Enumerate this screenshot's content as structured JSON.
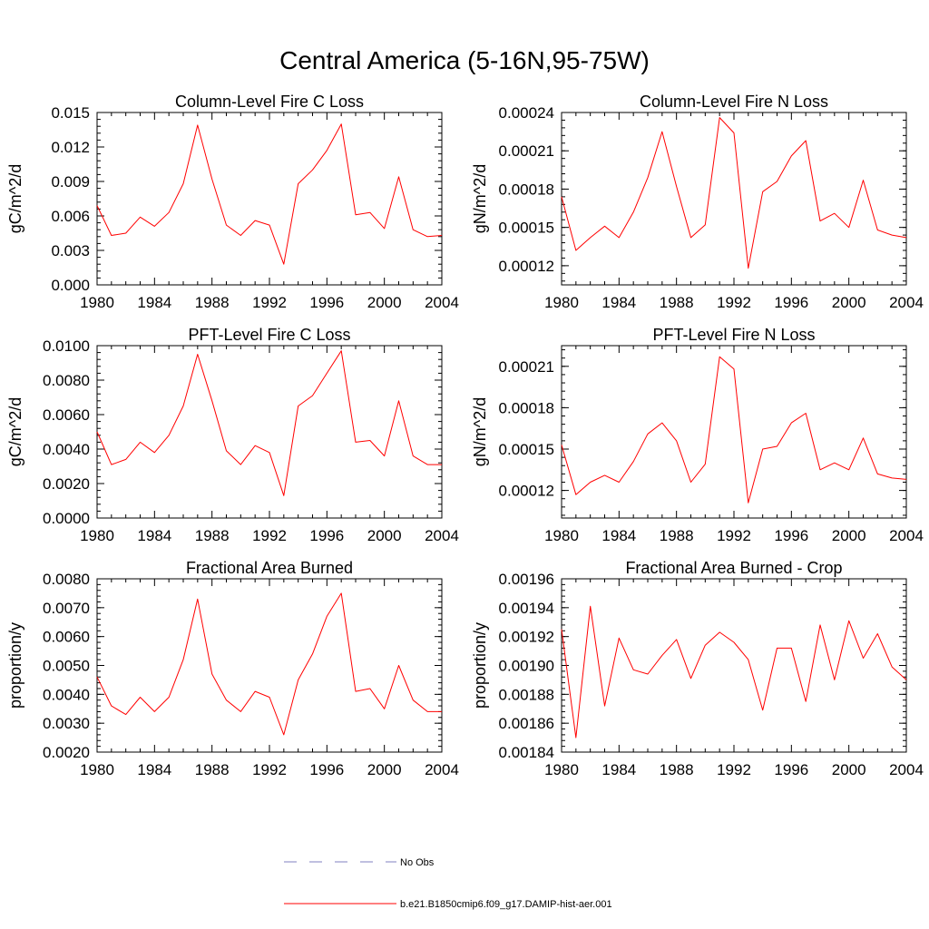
{
  "figure": {
    "title": "Central America (5-16N,95-75W)",
    "legend": {
      "placement": "bottom-center",
      "entries": [
        {
          "label": "No Obs",
          "color": "#8080c0",
          "style": "dashed"
        },
        {
          "label": "b.e21.B1850cmip6.f09_g17.DAMIP-hist-aer.001",
          "color": "#ff0000",
          "style": "solid"
        }
      ]
    }
  },
  "chart_data": [
    {
      "type": "line",
      "title": "Column-Level Fire C Loss",
      "ylabel": "gC/m^2/d",
      "xlim": [
        1980,
        2004
      ],
      "ylim": [
        0.0,
        0.015
      ],
      "xticks": [
        "1980",
        "1984",
        "1988",
        "1992",
        "1996",
        "2000",
        "2004"
      ],
      "yticks": [
        "0.000",
        "0.003",
        "0.006",
        "0.009",
        "0.012",
        "0.015"
      ],
      "series": [
        {
          "color": "#ff0000",
          "x": [
            1980,
            1981,
            1982,
            1983,
            1984,
            1985,
            1986,
            1987,
            1988,
            1989,
            1990,
            1991,
            1992,
            1993,
            1994,
            1995,
            1996,
            1997,
            1998,
            1999,
            2000,
            2001,
            2002,
            2003,
            2004
          ],
          "values": [
            0.0069,
            0.0043,
            0.0045,
            0.0059,
            0.0051,
            0.0063,
            0.0088,
            0.0139,
            0.0092,
            0.0052,
            0.0043,
            0.0056,
            0.0052,
            0.0018,
            0.0088,
            0.01,
            0.0117,
            0.014,
            0.0061,
            0.0063,
            0.0049,
            0.0094,
            0.0048,
            0.0042,
            0.0043
          ]
        }
      ]
    },
    {
      "type": "line",
      "title": "Column-Level Fire N Loss",
      "ylabel": "gN/m^2/d",
      "xlim": [
        1980,
        2004
      ],
      "ylim": [
        0.000105,
        0.00024
      ],
      "xticks": [
        "1980",
        "1984",
        "1988",
        "1992",
        "1996",
        "2000",
        "2004"
      ],
      "yticks": [
        "0.00012",
        "0.00015",
        "0.00018",
        "0.00021",
        "0.00024"
      ],
      "series": [
        {
          "color": "#ff0000",
          "x": [
            1980,
            1981,
            1982,
            1983,
            1984,
            1985,
            1986,
            1987,
            1988,
            1989,
            1990,
            1991,
            1992,
            1993,
            1994,
            1995,
            1996,
            1997,
            1998,
            1999,
            2000,
            2001,
            2002,
            2003,
            2004
          ],
          "values": [
            0.000174,
            0.000132,
            0.000142,
            0.000151,
            0.000142,
            0.000162,
            0.000189,
            0.000225,
            0.000182,
            0.000142,
            0.000152,
            0.000236,
            0.000224,
            0.000118,
            0.000178,
            0.000186,
            0.000206,
            0.000218,
            0.000155,
            0.000161,
            0.00015,
            0.000187,
            0.000148,
            0.000144,
            0.000142
          ]
        }
      ]
    },
    {
      "type": "line",
      "title": "PFT-Level Fire C Loss",
      "ylabel": "gC/m^2/d",
      "xlim": [
        1980,
        2004
      ],
      "ylim": [
        0.0,
        0.01
      ],
      "xticks": [
        "1980",
        "1984",
        "1988",
        "1992",
        "1996",
        "2000",
        "2004"
      ],
      "yticks": [
        "0.0000",
        "0.0020",
        "0.0040",
        "0.0060",
        "0.0080",
        "0.0100"
      ],
      "series": [
        {
          "color": "#ff0000",
          "x": [
            1980,
            1981,
            1982,
            1983,
            1984,
            1985,
            1986,
            1987,
            1988,
            1989,
            1990,
            1991,
            1992,
            1993,
            1994,
            1995,
            1996,
            1997,
            1998,
            1999,
            2000,
            2001,
            2002,
            2003,
            2004
          ],
          "values": [
            0.005,
            0.0031,
            0.0034,
            0.0044,
            0.0038,
            0.0048,
            0.0065,
            0.0095,
            0.0068,
            0.0039,
            0.0031,
            0.0042,
            0.0038,
            0.0013,
            0.0065,
            0.0071,
            0.0084,
            0.0097,
            0.0044,
            0.0045,
            0.0036,
            0.0068,
            0.0036,
            0.0031,
            0.0031
          ]
        }
      ]
    },
    {
      "type": "line",
      "title": "PFT-Level Fire N Loss",
      "ylabel": "gN/m^2/d",
      "xlim": [
        1980,
        2004
      ],
      "ylim": [
        0.0001,
        0.000225
      ],
      "xticks": [
        "1980",
        "1984",
        "1988",
        "1992",
        "1996",
        "2000",
        "2004"
      ],
      "yticks": [
        "0.00012",
        "0.00015",
        "0.00018",
        "0.00021"
      ],
      "series": [
        {
          "color": "#ff0000",
          "x": [
            1980,
            1981,
            1982,
            1983,
            1984,
            1985,
            1986,
            1987,
            1988,
            1989,
            1990,
            1991,
            1992,
            1993,
            1994,
            1995,
            1996,
            1997,
            1998,
            1999,
            2000,
            2001,
            2002,
            2003,
            2004
          ],
          "values": [
            0.000153,
            0.000117,
            0.000126,
            0.000131,
            0.000126,
            0.000141,
            0.000161,
            0.000169,
            0.000156,
            0.000126,
            0.000139,
            0.000217,
            0.000208,
            0.000111,
            0.00015,
            0.000152,
            0.000169,
            0.000176,
            0.000135,
            0.00014,
            0.000135,
            0.000158,
            0.000132,
            0.000129,
            0.000128
          ]
        }
      ]
    },
    {
      "type": "line",
      "title": "Fractional Area Burned",
      "ylabel": "proportion/y",
      "xlim": [
        1980,
        2004
      ],
      "ylim": [
        0.002,
        0.008
      ],
      "xticks": [
        "1980",
        "1984",
        "1988",
        "1992",
        "1996",
        "2000",
        "2004"
      ],
      "yticks": [
        "0.0020",
        "0.0030",
        "0.0040",
        "0.0050",
        "0.0060",
        "0.0070",
        "0.0080"
      ],
      "series": [
        {
          "color": "#ff0000",
          "x": [
            1980,
            1981,
            1982,
            1983,
            1984,
            1985,
            1986,
            1987,
            1988,
            1989,
            1990,
            1991,
            1992,
            1993,
            1994,
            1995,
            1996,
            1997,
            1998,
            1999,
            2000,
            2001,
            2002,
            2003,
            2004
          ],
          "values": [
            0.0046,
            0.0036,
            0.0033,
            0.0039,
            0.0034,
            0.0039,
            0.0052,
            0.0073,
            0.0047,
            0.0038,
            0.0034,
            0.0041,
            0.0039,
            0.0026,
            0.0045,
            0.0054,
            0.0067,
            0.0075,
            0.0041,
            0.0042,
            0.0035,
            0.005,
            0.0038,
            0.0034,
            0.0034
          ]
        }
      ]
    },
    {
      "type": "line",
      "title": "Fractional Area Burned - Crop",
      "ylabel": "proportion/y",
      "xlim": [
        1980,
        2004
      ],
      "ylim": [
        0.00184,
        0.00196
      ],
      "xticks": [
        "1980",
        "1984",
        "1988",
        "1992",
        "1996",
        "2000",
        "2004"
      ],
      "yticks": [
        "0.00184",
        "0.00186",
        "0.00188",
        "0.00190",
        "0.00192",
        "0.00194",
        "0.00196"
      ],
      "series": [
        {
          "color": "#ff0000",
          "x": [
            1980,
            1981,
            1982,
            1983,
            1984,
            1985,
            1986,
            1987,
            1988,
            1989,
            1990,
            1991,
            1992,
            1993,
            1994,
            1995,
            1996,
            1997,
            1998,
            1999,
            2000,
            2001,
            2002,
            2003,
            2004
          ],
          "values": [
            0.001925,
            0.00185,
            0.001941,
            0.001872,
            0.001919,
            0.001897,
            0.001894,
            0.001907,
            0.001918,
            0.001891,
            0.001914,
            0.001923,
            0.001916,
            0.001904,
            0.001869,
            0.001912,
            0.001912,
            0.001875,
            0.001928,
            0.00189,
            0.001931,
            0.001905,
            0.001922,
            0.001899,
            0.00189
          ]
        }
      ]
    }
  ]
}
